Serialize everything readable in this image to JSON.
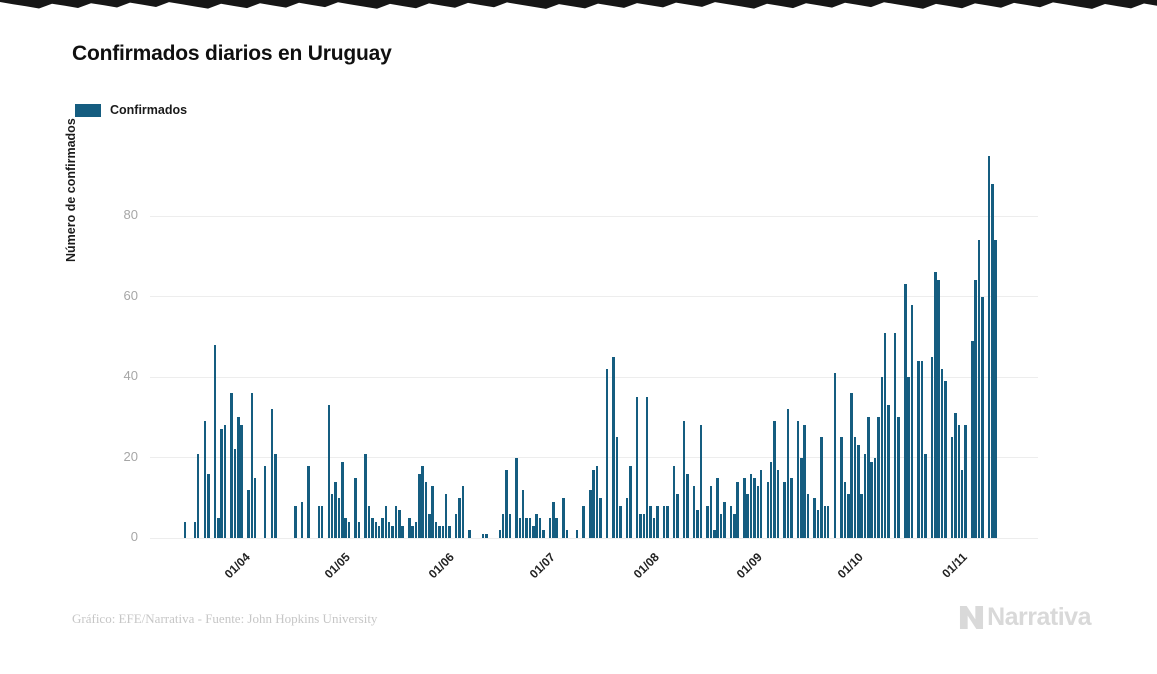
{
  "title": "Confirmados diarios en Uruguay",
  "legend": {
    "label": "Confirmados",
    "color": "#155d80"
  },
  "y_axis": {
    "title": "Número de confirmados",
    "ticks": [
      0,
      20,
      40,
      60,
      80
    ]
  },
  "x_axis": {
    "ticks": [
      {
        "label": "01/04",
        "day": 27
      },
      {
        "label": "01/05",
        "day": 57
      },
      {
        "label": "01/06",
        "day": 88
      },
      {
        "label": "01/07",
        "day": 118
      },
      {
        "label": "01/08",
        "day": 149
      },
      {
        "label": "01/09",
        "day": 180
      },
      {
        "label": "01/10",
        "day": 210
      },
      {
        "label": "01/11",
        "day": 241
      }
    ]
  },
  "footer": {
    "credit": "Gráfico: EFE/Narrativa - Fuente: John Hopkins University",
    "brand": "Narrativa"
  },
  "chart_data": {
    "type": "bar",
    "title": "Confirmados diarios en Uruguay",
    "series_name": "Confirmados",
    "ylabel": "Número de confirmados",
    "ylim": [
      0,
      99
    ],
    "grid": true,
    "legend_position": "top-left",
    "bar_color": "#155d80",
    "x_tick_labels": [
      "01/04",
      "01/05",
      "01/06",
      "01/07",
      "01/08",
      "01/09",
      "01/10",
      "01/11"
    ],
    "domain_days": 265,
    "values": [
      0,
      0,
      0,
      0,
      0,
      0,
      0,
      0,
      0,
      0,
      4,
      0,
      0,
      4,
      21,
      0,
      29,
      16,
      0,
      48,
      5,
      27,
      28,
      0,
      36,
      22,
      30,
      28,
      0,
      12,
      36,
      15,
      0,
      0,
      18,
      0,
      32,
      21,
      0,
      0,
      0,
      0,
      0,
      8,
      0,
      9,
      0,
      18,
      0,
      0,
      8,
      8,
      0,
      33,
      11,
      14,
      10,
      19,
      5,
      4,
      0,
      15,
      4,
      0,
      21,
      8,
      5,
      4,
      3,
      5,
      8,
      4,
      3,
      8,
      7,
      3,
      0,
      5,
      3,
      4,
      16,
      18,
      14,
      6,
      13,
      4,
      3,
      3,
      11,
      3,
      0,
      6,
      10,
      13,
      0,
      2,
      0,
      0,
      0,
      1,
      1,
      0,
      0,
      0,
      2,
      6,
      17,
      6,
      0,
      20,
      5,
      12,
      5,
      5,
      3,
      6,
      5,
      2,
      0,
      5,
      9,
      5,
      0,
      10,
      2,
      0,
      0,
      2,
      0,
      8,
      0,
      12,
      17,
      18,
      10,
      0,
      42,
      0,
      45,
      25,
      8,
      0,
      10,
      18,
      0,
      35,
      6,
      6,
      35,
      8,
      5,
      8,
      0,
      8,
      8,
      0,
      18,
      11,
      0,
      29,
      16,
      0,
      13,
      7,
      28,
      0,
      8,
      13,
      2,
      15,
      6,
      9,
      0,
      8,
      6,
      14,
      0,
      15,
      11,
      16,
      15,
      13,
      17,
      0,
      14,
      19,
      29,
      17,
      0,
      14,
      32,
      15,
      0,
      29,
      20,
      28,
      11,
      0,
      10,
      7,
      25,
      8,
      8,
      0,
      41,
      0,
      25,
      14,
      11,
      36,
      25,
      23,
      11,
      21,
      30,
      19,
      20,
      30,
      40,
      51,
      33,
      0,
      51,
      30,
      0,
      63,
      40,
      58,
      0,
      44,
      44,
      21,
      0,
      45,
      66,
      64,
      42,
      39,
      0,
      25,
      31,
      28,
      17,
      28,
      0,
      49,
      64,
      74,
      60,
      0,
      95,
      88,
      74,
      0
    ]
  }
}
